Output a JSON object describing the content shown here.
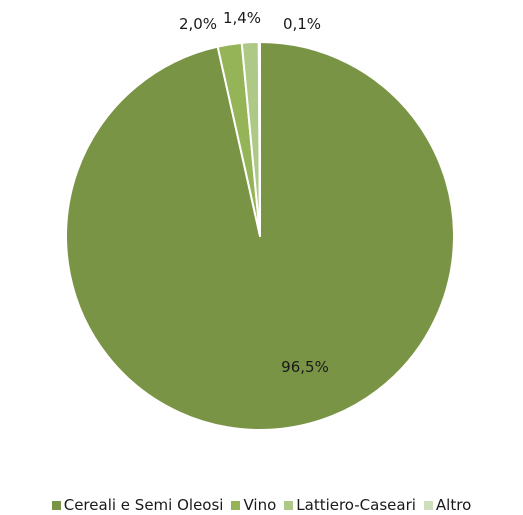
{
  "chart_data": {
    "type": "pie",
    "slices": [
      {
        "label": "Cereali e Semi Oleosi",
        "value": 96.5,
        "display": "96,5%",
        "color": "#7a9445"
      },
      {
        "label": "Vino",
        "value": 2.0,
        "display": "2,0%",
        "color": "#95b457"
      },
      {
        "label": "Lattiero-Caseari",
        "value": 1.4,
        "display": "1,4%",
        "color": "#aec886"
      },
      {
        "label": "Altro",
        "value": 0.1,
        "display": "0,1%",
        "color": "#cfdfbd"
      }
    ],
    "legend_position": "bottom",
    "start_angle_deg": 0,
    "direction": "clockwise"
  }
}
